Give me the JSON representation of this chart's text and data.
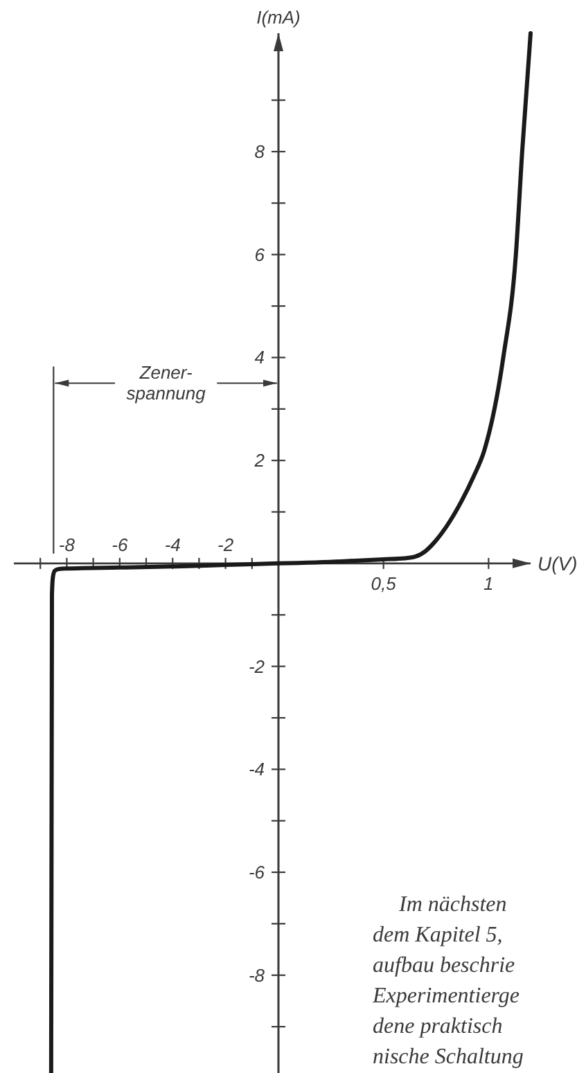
{
  "chart_data": [
    {
      "type": "line",
      "ylabel": "I(mA)",
      "x": [
        -8.59,
        -8.56,
        -8.52,
        -8.45,
        -8.3,
        -8,
        -6,
        -4,
        -2,
        0
      ],
      "values": [
        -9.9,
        -0.6,
        -0.25,
        -0.14,
        -0.11,
        -0.1,
        -0.08,
        -0.06,
        -0.03,
        0
      ],
      "color": "#1a1a1a",
      "xlim": [
        -10,
        0
      ],
      "ylim": [
        -9.9,
        10.3
      ],
      "xticks": [
        {
          "value": -9,
          "label": null
        },
        -8,
        {
          "value": -7,
          "label": null
        },
        -6,
        {
          "value": -5,
          "label": null
        },
        -4,
        {
          "value": -3,
          "label": null
        },
        -2,
        {
          "value": -1,
          "label": null
        }
      ],
      "yticks": [
        -8,
        {
          "value": -9,
          "label": null
        },
        {
          "value": -7,
          "label": null
        },
        -6,
        {
          "value": -5,
          "label": null
        },
        -4,
        {
          "value": -3,
          "label": null
        },
        -2,
        {
          "value": -1,
          "label": null
        },
        {
          "value": 1,
          "label": null
        },
        2,
        {
          "value": 3,
          "label": null
        },
        4,
        {
          "value": 5,
          "label": null
        },
        6,
        {
          "value": 7,
          "label": null
        },
        8,
        {
          "value": 9,
          "label": null
        }
      ],
      "ref_lines": [
        {
          "axis": "x",
          "value": -8.5,
          "label": "Zener-\nspannung"
        }
      ]
    },
    {
      "type": "line",
      "xlabel": "U(V)",
      "x": [
        0,
        0.3,
        0.5,
        0.6,
        0.65,
        0.7,
        0.74,
        0.8,
        0.87,
        0.93,
        0.98,
        1.07,
        1.13,
        1.16,
        1.2
      ],
      "values": [
        0,
        0.04,
        0.08,
        0.1,
        0.13,
        0.24,
        0.4,
        0.72,
        1.2,
        1.7,
        2.2,
        4.0,
        6.0,
        8.0,
        10.3
      ],
      "color": "#1a1a1a",
      "xlim": [
        0,
        1.2
      ],
      "ylim": [
        -9.9,
        10.3
      ],
      "xticks": [
        {
          "value": 0.5,
          "label": "0,5"
        },
        1
      ],
      "yticks": [
        -8,
        {
          "value": -9,
          "label": null
        },
        {
          "value": -7,
          "label": null
        },
        -6,
        {
          "value": -5,
          "label": null
        },
        -4,
        {
          "value": -3,
          "label": null
        },
        -2,
        {
          "value": -1,
          "label": null
        },
        {
          "value": 1,
          "label": null
        },
        2,
        {
          "value": 3,
          "label": null
        },
        4,
        {
          "value": 5,
          "label": null
        },
        6,
        {
          "value": 7,
          "label": null
        },
        8,
        {
          "value": 9,
          "label": null
        }
      ],
      "tick_labels": "x",
      "annotations": [
        "Im nächsten\ndem Kapitel 5,\naufbau beschrie\nExperimentierge\ndene praktisch\nnische Schaltung"
      ]
    }
  ]
}
